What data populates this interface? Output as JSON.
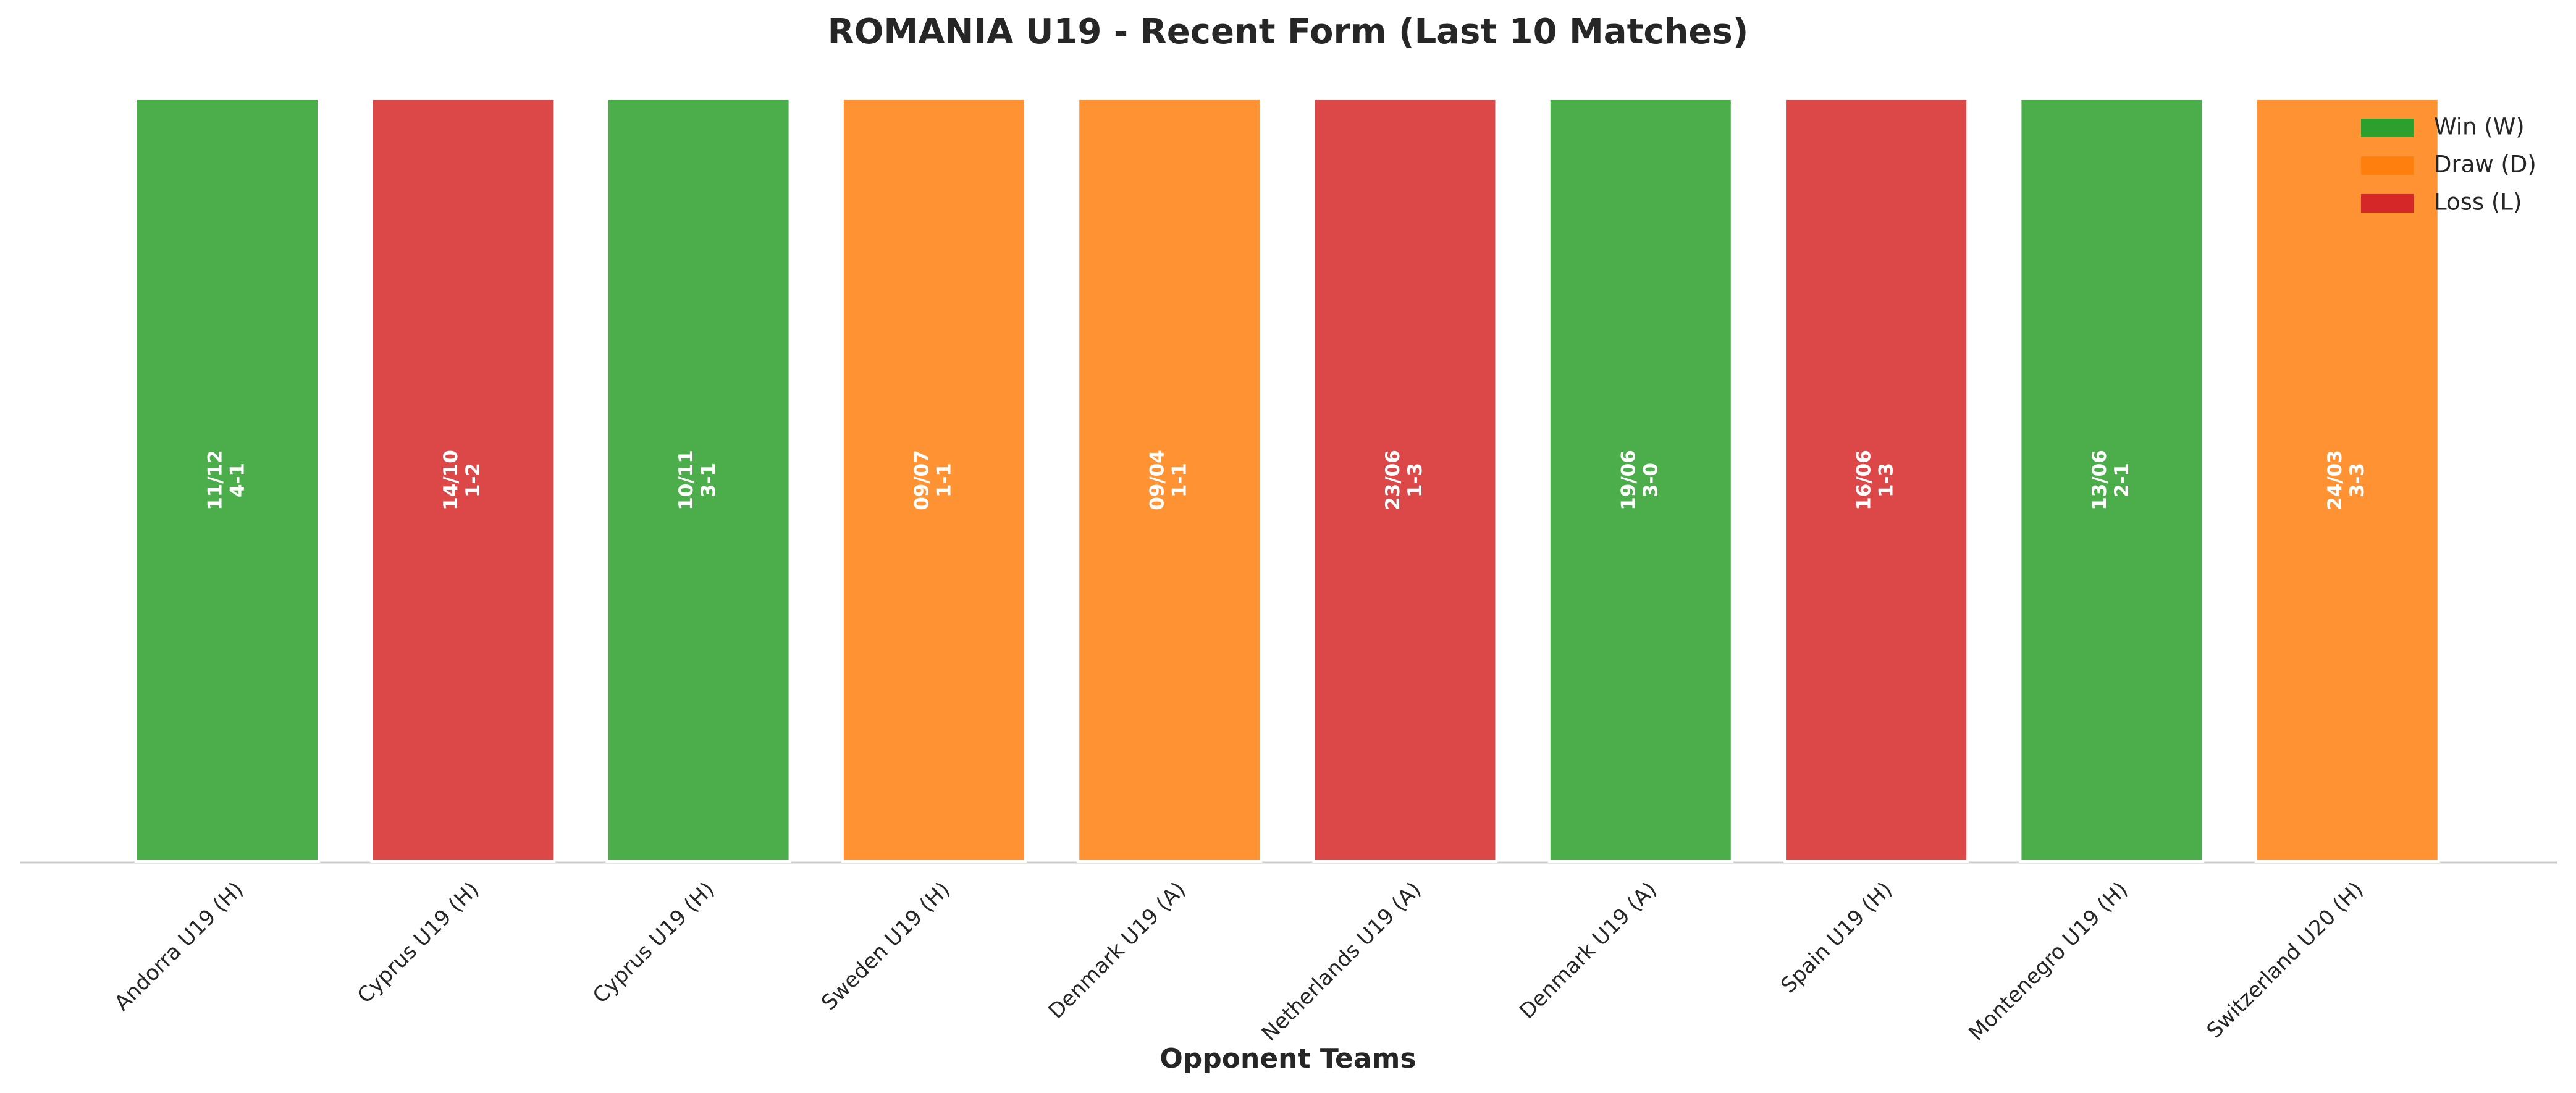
{
  "chart_data": {
    "type": "bar",
    "title": "ROMANIA U19 - Recent Form (Last 10 Matches)",
    "x_label": "Opponent Teams",
    "categories": [
      "Andorra U19 (H)",
      "Cyprus U19 (H)",
      "Cyprus U19 (H)",
      "Sweden U19 (H)",
      "Denmark U19 (A)",
      "Netherlands U19 (A)",
      "Denmark U19 (A)",
      "Spain U19 (H)",
      "Montenegro U19 (H)",
      "Switzerland U20 (H)"
    ],
    "values": [
      1,
      1,
      1,
      1,
      1,
      1,
      1,
      1,
      1,
      1
    ],
    "ylim": [
      0,
      1
    ],
    "dates": [
      "11/12",
      "14/10",
      "10/11",
      "09/07",
      "09/04",
      "23/06",
      "19/06",
      "16/06",
      "13/06",
      "24/03"
    ],
    "scores": [
      "4-1",
      "1-2",
      "3-1",
      "1-1",
      "1-1",
      "1-3",
      "3-0",
      "1-3",
      "2-1",
      "3-3"
    ],
    "colors": [
      "#2ca02c",
      "#d62728",
      "#2ca02c",
      "#ff7f0e",
      "#ff7f0e",
      "#d62728",
      "#2ca02c",
      "#d62728",
      "#2ca02c",
      "#ff7f0e"
    ],
    "legend": [
      {
        "name": "Win (W)",
        "color": "#2ca02c"
      },
      {
        "name": "Draw (D)",
        "color": "#ff7f0e"
      },
      {
        "name": "Loss (L)",
        "color": "#d62728"
      }
    ],
    "legend_position": "upper right"
  }
}
